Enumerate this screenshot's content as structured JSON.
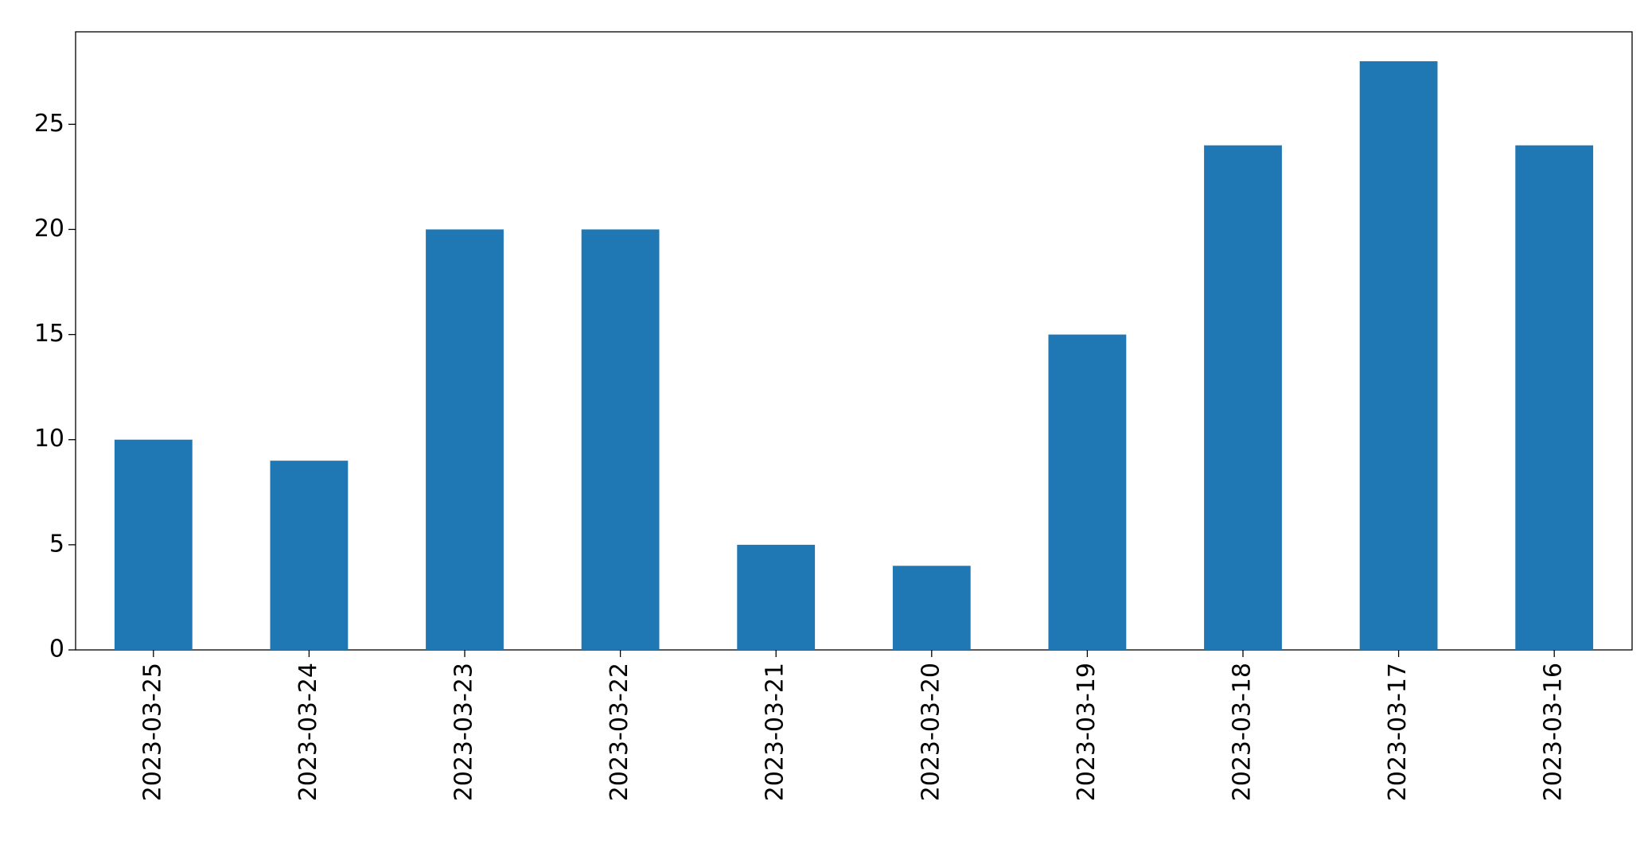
{
  "chart_data": {
    "type": "bar",
    "categories": [
      "2023-03-25",
      "2023-03-24",
      "2023-03-23",
      "2023-03-22",
      "2023-03-21",
      "2023-03-20",
      "2023-03-19",
      "2023-03-18",
      "2023-03-17",
      "2023-03-16"
    ],
    "values": [
      10,
      9,
      20,
      20,
      5,
      4,
      15,
      24,
      28,
      24
    ],
    "color": "#1f77b4",
    "ylim": [
      0,
      29.4
    ],
    "yticks": [
      0,
      5,
      10,
      15,
      20,
      25
    ],
    "grid": false
  }
}
